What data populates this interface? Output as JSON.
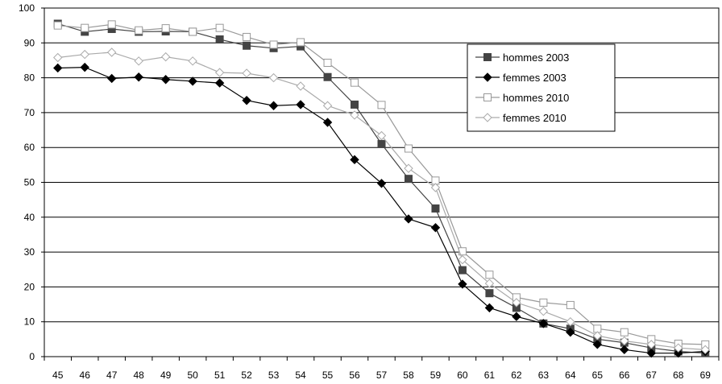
{
  "chart_data": {
    "type": "line",
    "title": "",
    "xlabel": "",
    "ylabel": "",
    "categories": [
      "45",
      "46",
      "47",
      "48",
      "49",
      "50",
      "51",
      "52",
      "53",
      "54",
      "55",
      "56",
      "57",
      "58",
      "59",
      "60",
      "61",
      "62",
      "63",
      "64",
      "65",
      "66",
      "67",
      "68",
      "69"
    ],
    "ylim": [
      0,
      100
    ],
    "yticks": [
      0,
      10,
      20,
      30,
      40,
      50,
      60,
      70,
      80,
      90,
      100
    ],
    "grid": "horizontal",
    "legend_position": "top-right",
    "series": [
      {
        "name": "hommes 2003",
        "marker": "square-filled",
        "color": "#444444",
        "values": [
          95.5,
          93.2,
          94.0,
          93.2,
          93.3,
          93.2,
          91.0,
          89.2,
          88.5,
          89.0,
          80.2,
          72.3,
          61.0,
          51.0,
          42.5,
          24.8,
          18.2,
          14.0,
          9.5,
          8.0,
          5.0,
          4.0,
          2.5,
          1.5,
          1.0
        ]
      },
      {
        "name": "femmes 2003",
        "marker": "diamond-filled",
        "color": "#000000",
        "values": [
          82.8,
          83.0,
          79.8,
          80.2,
          79.5,
          79.0,
          78.5,
          73.5,
          72.0,
          72.3,
          67.2,
          56.5,
          49.7,
          39.5,
          37.0,
          20.8,
          14.0,
          11.5,
          9.5,
          7.0,
          3.5,
          2.0,
          1.0,
          1.0,
          1.5
        ]
      },
      {
        "name": "hommes 2010",
        "marker": "square-open",
        "color": "#999999",
        "values": [
          95.0,
          94.3,
          95.3,
          93.6,
          94.2,
          93.2,
          94.3,
          91.7,
          89.5,
          90.2,
          84.3,
          78.6,
          72.2,
          59.7,
          50.5,
          30.2,
          23.5,
          17.0,
          15.5,
          14.8,
          8.0,
          7.0,
          5.0,
          3.7,
          3.5
        ]
      },
      {
        "name": "femmes 2010",
        "marker": "diamond-open",
        "color": "#aaaaaa",
        "values": [
          85.8,
          86.7,
          87.3,
          84.8,
          86.0,
          84.8,
          81.5,
          81.3,
          80.0,
          77.6,
          72.0,
          69.3,
          63.4,
          54.0,
          48.5,
          27.8,
          21.0,
          15.5,
          13.0,
          10.0,
          6.0,
          4.5,
          3.5,
          2.5,
          2.0
        ]
      }
    ]
  }
}
